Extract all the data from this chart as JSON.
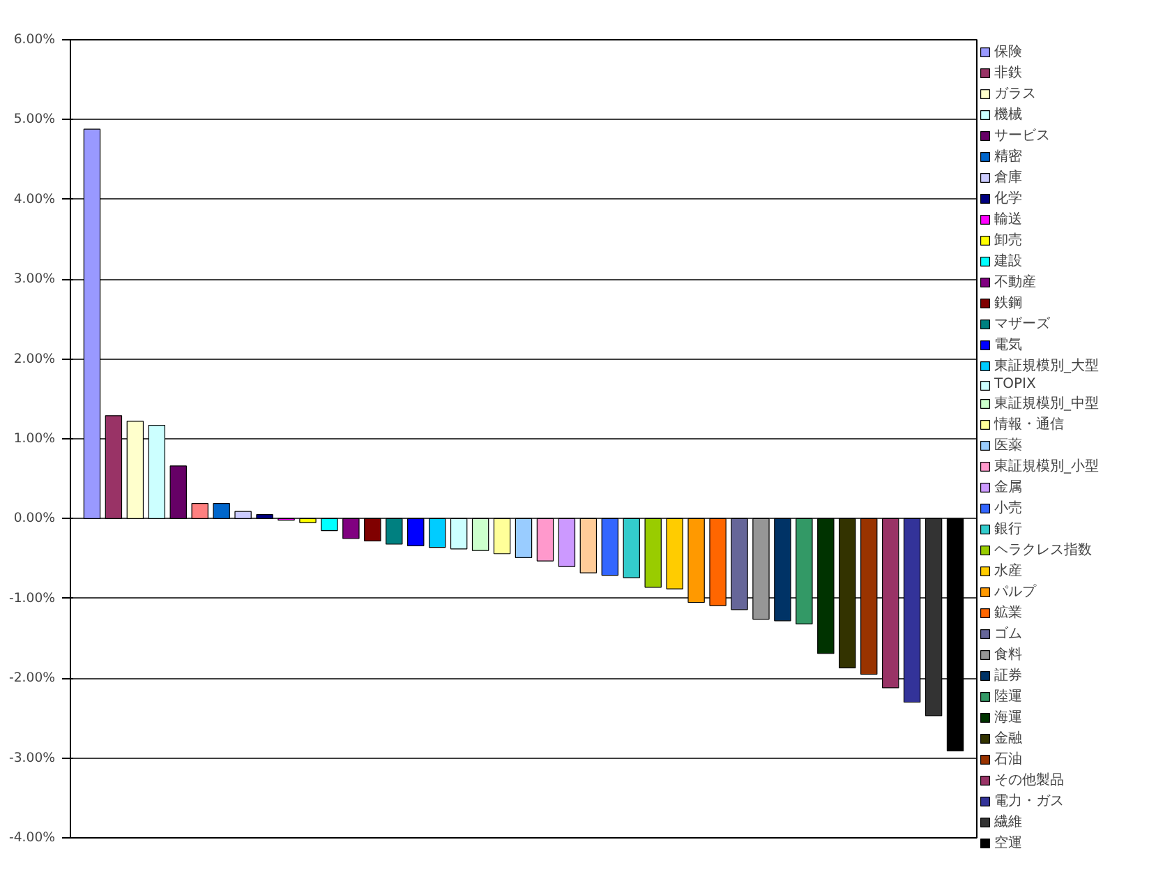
{
  "chart_data": {
    "type": "bar",
    "categories": [
      null
    ],
    "series": [
      {
        "name": "保険",
        "color": "#9999ff",
        "values": [
          4.88
        ]
      },
      {
        "name": "非鉄",
        "color": "#993366",
        "values": [
          1.29
        ]
      },
      {
        "name": "ガラス",
        "color": "#ffffcc",
        "values": [
          1.22
        ]
      },
      {
        "name": "機械",
        "color": "#ccffff",
        "values": [
          1.17
        ]
      },
      {
        "name": "サービス",
        "color": "#660066",
        "values": [
          0.66
        ]
      },
      {
        "color": "#ff8080",
        "values": [
          0.19
        ]
      },
      {
        "name": "精密",
        "color": "#0066cc",
        "values": [
          0.19
        ]
      },
      {
        "name": "倉庫",
        "color": "#ccccff",
        "values": [
          0.09
        ]
      },
      {
        "name": "化学",
        "color": "#000080",
        "values": [
          0.05
        ]
      },
      {
        "name": "輸送",
        "color": "#ff00ff",
        "values": [
          -0.02
        ]
      },
      {
        "name": "卸売",
        "color": "#ffff00",
        "values": [
          -0.05
        ]
      },
      {
        "name": "建設",
        "color": "#00ffff",
        "values": [
          -0.15
        ]
      },
      {
        "name": "不動産",
        "color": "#800080",
        "values": [
          -0.25
        ]
      },
      {
        "name": "鉄鋼",
        "color": "#800000",
        "values": [
          -0.28
        ]
      },
      {
        "name": "マザーズ",
        "color": "#008080",
        "values": [
          -0.32
        ]
      },
      {
        "name": "電気",
        "color": "#0000ff",
        "values": [
          -0.34
        ]
      },
      {
        "name": "東証規模別_大型",
        "color": "#00ccff",
        "values": [
          -0.36
        ]
      },
      {
        "name": "TOPIX",
        "color": "#ccffff",
        "values": [
          -0.38
        ]
      },
      {
        "name": "東証規模別_中型",
        "color": "#ccffcc",
        "values": [
          -0.4
        ]
      },
      {
        "name": "情報・通信",
        "color": "#ffff99",
        "values": [
          -0.44
        ]
      },
      {
        "name": "医薬",
        "color": "#99ccff",
        "values": [
          -0.49
        ]
      },
      {
        "name": "東証規模別_小型",
        "color": "#ff99cc",
        "values": [
          -0.53
        ]
      },
      {
        "name": "金属",
        "color": "#cc99ff",
        "values": [
          -0.6
        ]
      },
      {
        "color": "#ffcc99",
        "values": [
          -0.68
        ]
      },
      {
        "name": "小売",
        "color": "#3366ff",
        "values": [
          -0.71
        ]
      },
      {
        "name": "銀行",
        "color": "#33cccc",
        "values": [
          -0.74
        ]
      },
      {
        "name": "ヘラクレス指数",
        "color": "#99cc00",
        "values": [
          -0.86
        ]
      },
      {
        "name": "水産",
        "color": "#ffcc00",
        "values": [
          -0.88
        ]
      },
      {
        "name": "パルプ",
        "color": "#ff9900",
        "values": [
          -1.05
        ]
      },
      {
        "name": "鉱業",
        "color": "#ff6600",
        "values": [
          -1.09
        ]
      },
      {
        "name": "ゴム",
        "color": "#666699",
        "values": [
          -1.14
        ]
      },
      {
        "name": "食料",
        "color": "#969696",
        "values": [
          -1.26
        ]
      },
      {
        "name": "証券",
        "color": "#003366",
        "values": [
          -1.28
        ]
      },
      {
        "name": "陸運",
        "color": "#339966",
        "values": [
          -1.32
        ]
      },
      {
        "name": "海運",
        "color": "#003300",
        "values": [
          -1.69
        ]
      },
      {
        "name": "金融",
        "color": "#333300",
        "values": [
          -1.87
        ]
      },
      {
        "name": "石油",
        "color": "#993300",
        "values": [
          -1.95
        ]
      },
      {
        "name": "その他製品",
        "color": "#993366",
        "values": [
          -2.12
        ]
      },
      {
        "name": "電力・ガス",
        "color": "#333399",
        "values": [
          -2.3
        ]
      },
      {
        "name": "繊維",
        "color": "#333333",
        "values": [
          -2.47
        ]
      },
      {
        "name": "空運",
        "color": "#000000",
        "values": [
          -2.91
        ]
      }
    ],
    "ylim": [
      -4,
      6
    ],
    "yticks": [
      {
        "value": -4,
        "label": "-4.00%"
      },
      {
        "value": -3,
        "label": "-3.00%"
      },
      {
        "value": -2,
        "label": "-2.00%"
      },
      {
        "value": -1,
        "label": "-1.00%"
      },
      {
        "value": 0,
        "label": "0.00%"
      },
      {
        "value": 1,
        "label": "1.00%"
      },
      {
        "value": 2,
        "label": "2.00%"
      },
      {
        "value": 3,
        "label": "3.00%"
      },
      {
        "value": 4,
        "label": "4.00%"
      },
      {
        "value": 5,
        "label": "5.00%"
      },
      {
        "value": 6,
        "label": "6.00%"
      }
    ],
    "grid": "y",
    "legend": "right",
    "tick_labels": "y"
  }
}
